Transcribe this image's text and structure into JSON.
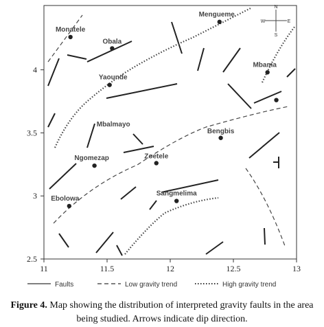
{
  "chart_data": {
    "type": "map",
    "xlim": [
      11,
      13
    ],
    "ylim": [
      2.5,
      4.51
    ],
    "xticks": [
      11,
      11.5,
      12,
      12.5,
      13
    ],
    "yticks": [
      2.5,
      3,
      3.5,
      4
    ],
    "places": [
      {
        "name": "Monatele",
        "lon": 11.21,
        "lat": 4.26
      },
      {
        "name": "Obala",
        "lon": 11.54,
        "lat": 4.17
      },
      {
        "name": "Mengueme",
        "lon": 12.39,
        "lat": 4.38
      },
      {
        "name": "Mbama",
        "lon": 12.77,
        "lat": 3.98
      },
      {
        "name": "Yaounde",
        "lon": 11.52,
        "lat": 3.88
      },
      {
        "name": "Bengbis",
        "lon": 12.4,
        "lat": 3.46
      },
      {
        "name": "Ngomezap",
        "lon": 11.4,
        "lat": 3.24
      },
      {
        "name": "Zoetele",
        "lon": 11.89,
        "lat": 3.26
      },
      {
        "name": "Sangmelima",
        "lon": 12.05,
        "lat": 2.96
      },
      {
        "name": "Ebolowa",
        "lon": 11.2,
        "lat": 2.92
      },
      {
        "name": null,
        "lon": 12.84,
        "lat": 3.76
      }
    ],
    "map_labels": [
      {
        "text": "Mbalmayo",
        "lon": 11.55,
        "lat": 3.55
      }
    ],
    "compass": [
      "N",
      "E",
      "S",
      "W"
    ],
    "legend": [
      "Faults",
      "Low gravity trend",
      "High gravity trend"
    ]
  },
  "caption": {
    "label": "Figure 4.",
    "text_line1": "Map showing the distribution of interpreted gravity faults in the area",
    "text_line2": "being studied. Arrows indicate dip direction."
  }
}
